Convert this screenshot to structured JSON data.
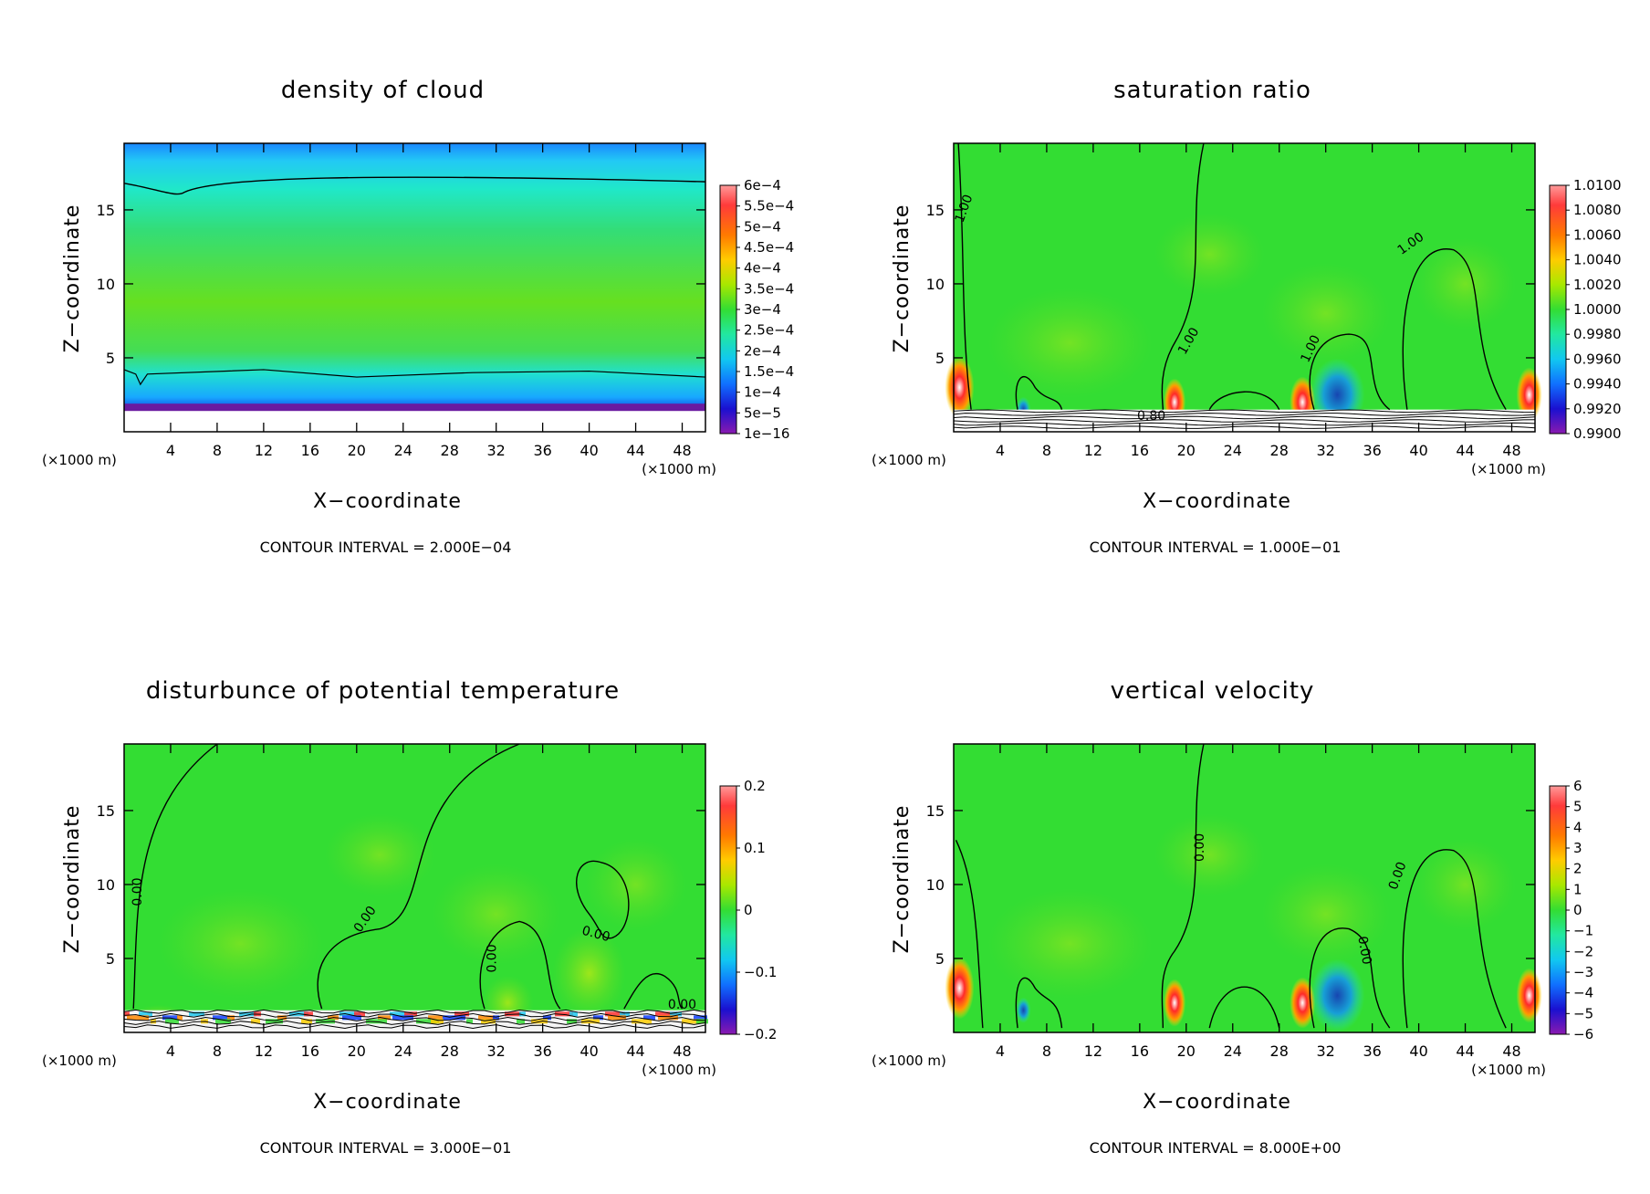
{
  "chart_data": [
    {
      "type": "heatmap",
      "title": "density of cloud",
      "xlabel": "X−coordinate",
      "ylabel": "Z−coordinate",
      "x_unit": "(×1000 m)",
      "y_unit": "(×1000 m)",
      "xlim": [
        0,
        50
      ],
      "ylim": [
        0,
        19.5
      ],
      "x_ticks": [
        "4",
        "8",
        "12",
        "16",
        "20",
        "24",
        "28",
        "32",
        "36",
        "40",
        "44",
        "48"
      ],
      "y_ticks": [
        "5",
        "10",
        "15"
      ],
      "colorbar_labels": [
        "6e−4",
        "5.5e−4",
        "5e−4",
        "4.5e−4",
        "4e−4",
        "3.5e−4",
        "3e−4",
        "2.5e−4",
        "2e−4",
        "1.5e−4",
        "1e−4",
        "5e−5",
        "1e−16"
      ],
      "contour_interval": "CONTOUR INTERVAL = 2.000E−04",
      "contour_labels": []
    },
    {
      "type": "heatmap",
      "title": "saturation ratio",
      "xlabel": "X−coordinate",
      "ylabel": "Z−coordinate",
      "x_unit": "(×1000 m)",
      "y_unit": "(×1000 m)",
      "xlim": [
        0,
        50
      ],
      "ylim": [
        0,
        19.5
      ],
      "x_ticks": [
        "4",
        "8",
        "12",
        "16",
        "20",
        "24",
        "28",
        "32",
        "36",
        "40",
        "44",
        "48"
      ],
      "y_ticks": [
        "5",
        "10",
        "15"
      ],
      "colorbar_labels": [
        "1.0100",
        "1.0080",
        "1.0060",
        "1.0040",
        "1.0020",
        "1.0000",
        "0.9980",
        "0.9960",
        "0.9940",
        "0.9920",
        "0.9900"
      ],
      "contour_interval": "CONTOUR INTERVAL = 1.000E−01",
      "contour_labels": [
        "1.00",
        "1.00",
        "1.00",
        "1.00",
        "0.80"
      ]
    },
    {
      "type": "heatmap",
      "title": "disturbunce of potential temperature",
      "xlabel": "X−coordinate",
      "ylabel": "Z−coordinate",
      "x_unit": "(×1000 m)",
      "y_unit": "(×1000 m)",
      "xlim": [
        0,
        50
      ],
      "ylim": [
        0,
        19.5
      ],
      "x_ticks": [
        "4",
        "8",
        "12",
        "16",
        "20",
        "24",
        "28",
        "32",
        "36",
        "40",
        "44",
        "48"
      ],
      "y_ticks": [
        "5",
        "10",
        "15"
      ],
      "colorbar_labels": [
        "0.2",
        "0.1",
        "0",
        "−0.1",
        "−0.2"
      ],
      "contour_interval": "CONTOUR INTERVAL = 3.000E−01",
      "contour_labels": [
        "0.00",
        "0.00",
        "0.00",
        "0.00",
        "0.00"
      ]
    },
    {
      "type": "heatmap",
      "title": "vertical velocity",
      "xlabel": "X−coordinate",
      "ylabel": "Z−coordinate",
      "x_unit": "(×1000 m)",
      "y_unit": "(×1000 m)",
      "xlim": [
        0,
        50
      ],
      "ylim": [
        0,
        19.5
      ],
      "x_ticks": [
        "4",
        "8",
        "12",
        "16",
        "20",
        "24",
        "28",
        "32",
        "36",
        "40",
        "44",
        "48"
      ],
      "y_ticks": [
        "5",
        "10",
        "15"
      ],
      "colorbar_labels": [
        "6",
        "5",
        "4",
        "3",
        "2",
        "1",
        "0",
        "−1",
        "−2",
        "−3",
        "−4",
        "−5",
        "−6"
      ],
      "contour_interval": "CONTOUR INTERVAL = 8.000E+00",
      "contour_labels": [
        "0.00",
        "0.00",
        "0.00"
      ]
    }
  ]
}
